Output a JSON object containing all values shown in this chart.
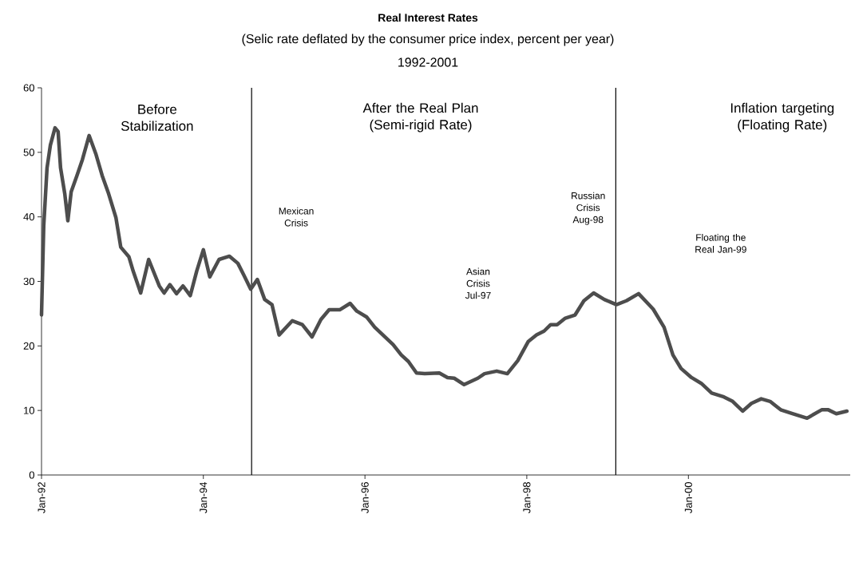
{
  "chart_data": {
    "type": "line",
    "title": "Real Interest Rates",
    "subtitle": "(Selic rate deflated by the consumer price index, percent per year)",
    "annotations": [
      "Before Stabilization",
      "After the Real Plan (Semi-rigid Rate)",
      "Inflation targeting (Floating Rate)",
      "Mexican Crisis",
      "Asian Crisis Jul-97",
      "Russian Crisis Aug-98",
      "Floating the Real Jan-99",
      "1992-2001"
    ],
    "x": [
      "1992-01-01",
      "1992-01-11",
      "1992-01-26",
      "1992-02-10",
      "1992-03-02",
      "1992-03-16",
      "1992-03-27",
      "1992-04-15",
      "1992-04-29",
      "1992-05-14",
      "1992-06-09",
      "1992-07-04",
      "1992-08-03",
      "1992-09-02",
      "1992-10-01",
      "1992-10-30",
      "1992-12-02",
      "1992-12-24",
      "1993-01-30",
      "1993-02-18",
      "1993-03-24",
      "1993-04-29",
      "1993-06-16",
      "1993-07-08",
      "1993-08-03",
      "1993-09-02",
      "1993-10-01",
      "1993-11-03",
      "1993-12-02",
      "1994-01-01",
      "1994-01-30",
      "1994-03-13",
      "1994-04-29",
      "1994-06-06",
      "1994-07-04",
      "1994-08-03",
      "1994-09-02",
      "1994-10-05",
      "1994-11-07",
      "1994-12-09",
      "1995-02-07",
      "1995-03-24",
      "1995-05-07",
      "1995-06-16",
      "1995-07-23",
      "1995-09-09",
      "1995-10-26",
      "1995-11-25",
      "1996-01-08",
      "1996-02-14",
      "1996-05-07",
      "1996-06-13",
      "1996-07-15",
      "1996-08-21",
      "1996-09-27",
      "1996-12-02",
      "1997-01-08",
      "1997-02-07",
      "1997-03-24",
      "1997-05-25",
      "1997-06-24",
      "1997-08-18",
      "1997-10-05",
      "1997-11-21",
      "1998-01-08",
      "1998-02-14",
      "1998-03-20",
      "1998-04-19",
      "1998-05-18",
      "1998-06-24",
      "1998-08-07",
      "1998-09-16",
      "1998-10-30",
      "1998-12-17",
      "1999-02-10",
      "1999-03-27",
      "1999-05-21",
      "1999-07-26",
      "1999-09-13",
      "1999-10-23",
      "1999-11-29",
      "2000-01-15",
      "2000-02-28",
      "2000-04-15",
      "2000-06-09",
      "2000-07-19",
      "2000-09-02",
      "2000-10-12",
      "2000-11-25",
      "2001-01-04",
      "2001-02-21",
      "2001-04-15",
      "2001-06-20",
      "2001-08-25",
      "2001-09-24",
      "2001-10-30",
      "2001-12-17"
    ],
    "series": [
      {
        "color": "#4d4d4d",
        "values": [
          24.8,
          38.6,
          47.6,
          51.1,
          53.8,
          53.2,
          47.6,
          43.6,
          39.4,
          43.9,
          46.4,
          48.9,
          52.6,
          49.8,
          46.4,
          43.6,
          39.9,
          35.3,
          33.8,
          31.6,
          28.2,
          33.4,
          29.3,
          28.2,
          29.5,
          28.1,
          29.3,
          27.8,
          31.6,
          34.9,
          30.7,
          33.4,
          33.9,
          32.8,
          30.9,
          28.8,
          30.3,
          27.2,
          26.4,
          21.7,
          23.9,
          23.3,
          21.4,
          24.1,
          25.6,
          25.6,
          26.6,
          25.4,
          24.5,
          22.9,
          20.2,
          18.6,
          17.6,
          15.8,
          15.7,
          15.8,
          15.1,
          15.0,
          14.0,
          15.0,
          15.7,
          16.1,
          15.7,
          17.7,
          20.7,
          21.7,
          22.3,
          23.3,
          23.3,
          24.3,
          24.8,
          27.0,
          28.2,
          27.2,
          26.4,
          27.0,
          28.1,
          25.7,
          22.9,
          18.6,
          16.5,
          15.1,
          14.2,
          12.7,
          12.1,
          11.4,
          9.9,
          11.1,
          11.8,
          11.4,
          10.1,
          9.5,
          8.8,
          10.1,
          10.1,
          9.5,
          9.9
        ]
      }
    ],
    "xlim": [
      "1992-01-01",
      "2002-01-01"
    ],
    "ylim": [
      0,
      60
    ],
    "xticks": [
      {
        "value": "1992-01-01",
        "label": "Jan-92"
      },
      {
        "value": "1994-01-01",
        "label": "Jan-94"
      },
      {
        "value": "1996-01-01",
        "label": "Jan-96"
      },
      {
        "value": "1998-01-01",
        "label": "Jan-98"
      },
      {
        "value": "2000-01-01",
        "label": "Jan-00"
      }
    ],
    "yticks": [
      0,
      10,
      20,
      30,
      40,
      50,
      60
    ],
    "ref_lines": [
      {
        "axis": "x",
        "value": "1994-08-07",
        "color": "#000000"
      },
      {
        "axis": "x",
        "value": "1999-02-07",
        "color": "#000000"
      }
    ],
    "marker": "none",
    "line_style": "solid",
    "grid": false
  }
}
